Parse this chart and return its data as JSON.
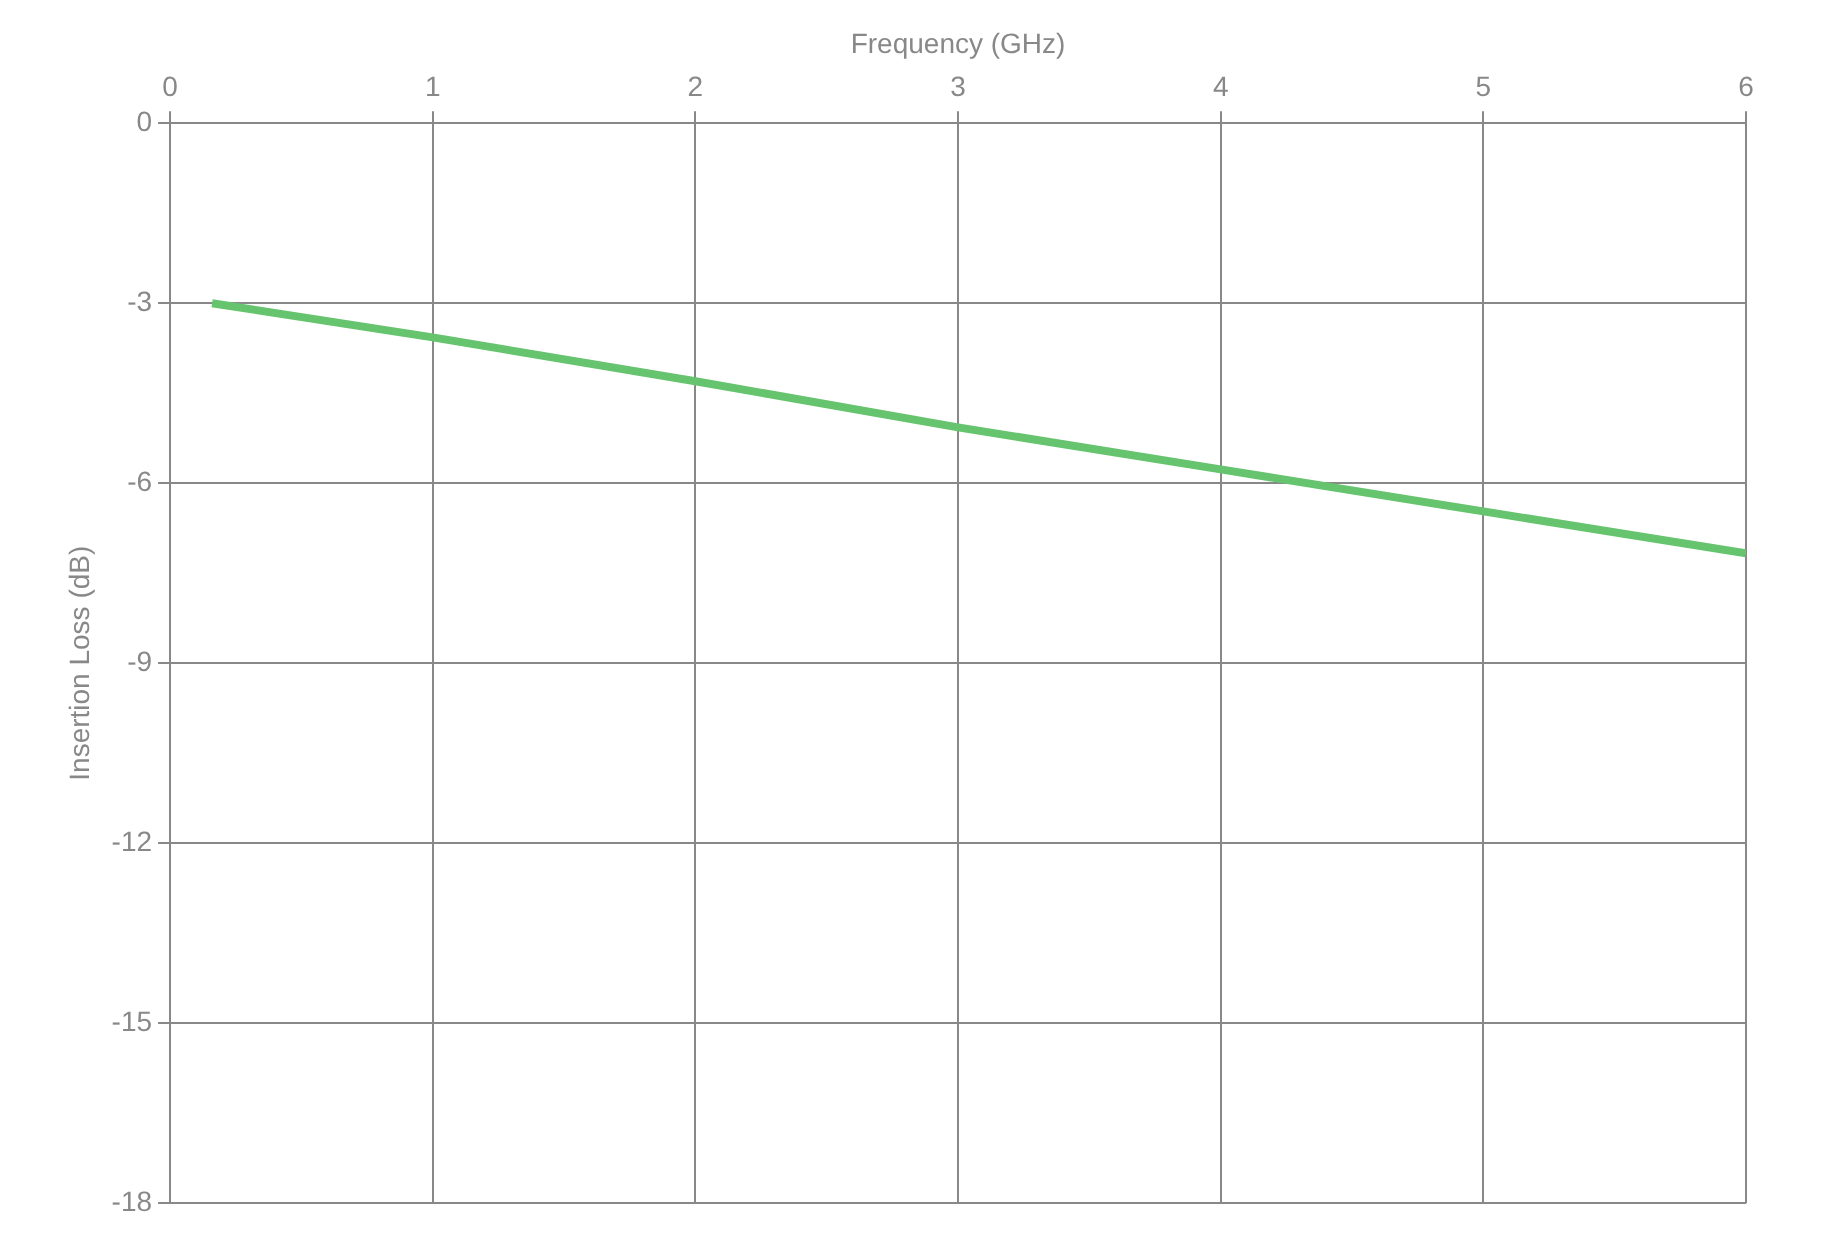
{
  "chart_data": {
    "type": "line",
    "xlabel": "Frequency (GHz)",
    "ylabel": "Insertion Loss (dB)",
    "x": [
      0.16,
      1,
      2,
      3,
      4,
      5,
      6
    ],
    "series": [
      {
        "color": "#66c46e",
        "values": [
          -3.0,
          -3.57,
          -4.3,
          -5.07,
          -5.77,
          -6.47,
          -7.17
        ]
      }
    ],
    "xlim": [
      0,
      6
    ],
    "xticks": [
      0,
      1,
      2,
      3,
      4,
      5,
      6
    ],
    "ylim": [
      -18,
      0
    ],
    "yticks": [
      -18,
      -15,
      -12,
      -9,
      -6,
      -3,
      0
    ],
    "grid": true,
    "legend": false,
    "marker": "none",
    "line_style": "solid"
  }
}
